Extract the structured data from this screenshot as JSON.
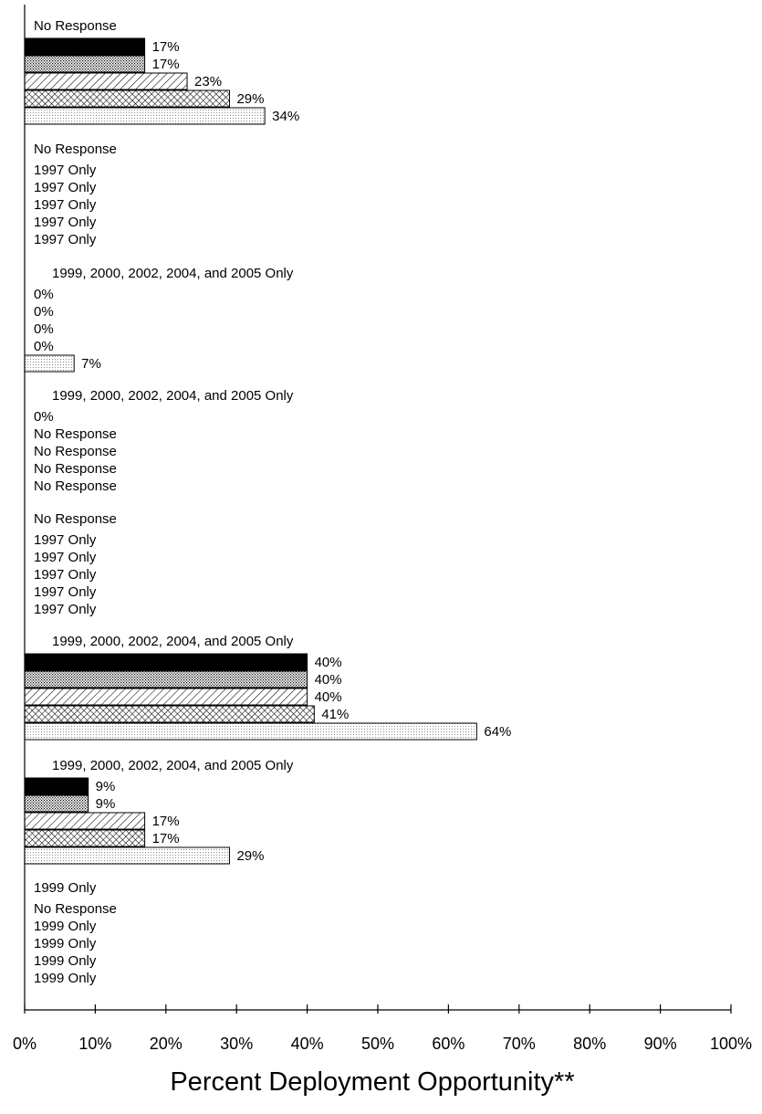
{
  "chart_data": {
    "type": "bar",
    "orientation": "horizontal",
    "xlabel": "Percent Deployment Opportunity**",
    "xlim": [
      0,
      100
    ],
    "x_ticks": [
      "0%",
      "10%",
      "20%",
      "30%",
      "40%",
      "50%",
      "60%",
      "70%",
      "80%",
      "90%",
      "100%"
    ],
    "bar_styles": [
      "solid-black",
      "dense-dots",
      "diagonal-hatch",
      "cross-hatch",
      "light-dots"
    ],
    "groups": [
      {
        "label": "No Response",
        "rows": [
          {
            "value": 17,
            "label": "17%"
          },
          {
            "value": 17,
            "label": "17%"
          },
          {
            "value": 23,
            "label": "23%"
          },
          {
            "value": 29,
            "label": "29%"
          },
          {
            "value": 34,
            "label": "34%"
          }
        ]
      },
      {
        "label": "No Response",
        "rows": [
          {
            "value": 0,
            "label": "1997 Only"
          },
          {
            "value": 0,
            "label": "1997 Only"
          },
          {
            "value": 0,
            "label": "1997 Only"
          },
          {
            "value": 0,
            "label": "1997 Only"
          },
          {
            "value": 0,
            "label": "1997 Only"
          }
        ]
      },
      {
        "label": "1999, 2000, 2002, 2004, and 2005 Only",
        "rows": [
          {
            "value": 0,
            "label": "0%"
          },
          {
            "value": 0,
            "label": "0%"
          },
          {
            "value": 0,
            "label": "0%"
          },
          {
            "value": 0,
            "label": "0%"
          },
          {
            "value": 7,
            "label": "7%"
          }
        ]
      },
      {
        "label": "1999, 2000, 2002, 2004, and 2005 Only",
        "rows": [
          {
            "value": 0,
            "label": "0%"
          },
          {
            "value": 0,
            "label": "No Response"
          },
          {
            "value": 0,
            "label": "No Response"
          },
          {
            "value": 0,
            "label": "No Response"
          },
          {
            "value": 0,
            "label": "No Response"
          }
        ]
      },
      {
        "label": "No Response",
        "rows": [
          {
            "value": 0,
            "label": "1997 Only"
          },
          {
            "value": 0,
            "label": "1997 Only"
          },
          {
            "value": 0,
            "label": "1997 Only"
          },
          {
            "value": 0,
            "label": "1997 Only"
          },
          {
            "value": 0,
            "label": "1997 Only"
          }
        ]
      },
      {
        "label": "1999, 2000, 2002, 2004, and 2005 Only",
        "rows": [
          {
            "value": 40,
            "label": "40%"
          },
          {
            "value": 40,
            "label": "40%"
          },
          {
            "value": 40,
            "label": "40%"
          },
          {
            "value": 41,
            "label": "41%"
          },
          {
            "value": 64,
            "label": "64%"
          }
        ]
      },
      {
        "label": "1999, 2000, 2002, 2004, and 2005 Only",
        "rows": [
          {
            "value": 9,
            "label": "9%"
          },
          {
            "value": 9,
            "label": "9%"
          },
          {
            "value": 17,
            "label": "17%"
          },
          {
            "value": 17,
            "label": "17%"
          },
          {
            "value": 29,
            "label": "29%"
          }
        ]
      },
      {
        "label": "1999 Only",
        "rows": [
          {
            "value": 0,
            "label": "No Response"
          },
          {
            "value": 0,
            "label": "1999 Only"
          },
          {
            "value": 0,
            "label": "1999 Only"
          },
          {
            "value": 0,
            "label": "1999 Only"
          },
          {
            "value": 0,
            "label": "1999 Only"
          }
        ]
      }
    ]
  }
}
